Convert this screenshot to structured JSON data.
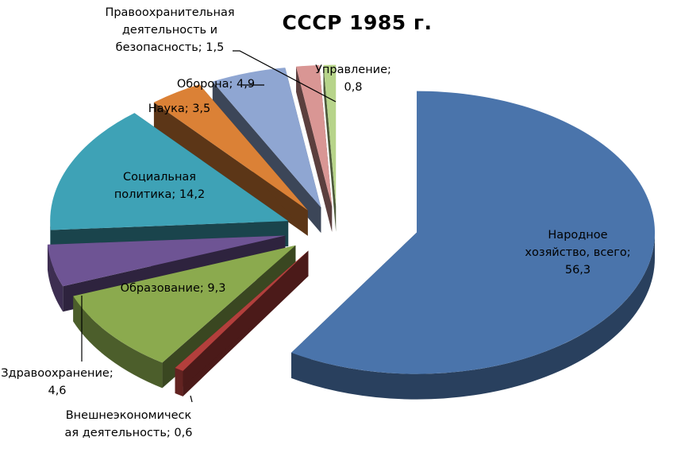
{
  "chart_data": {
    "type": "pie",
    "title": "СССР 1985 г.",
    "exploded": true,
    "three_d": true,
    "slices": [
      {
        "label": "Народное хозяйство, всего",
        "value": 56.3,
        "label_lines": [
          "Народное",
          "хозяйство, всего;",
          "56,3"
        ],
        "color": "#4a74ab"
      },
      {
        "label": "Внешнеэкономическая деятельность",
        "value": 0.6,
        "label_lines": [
          "Внешнеэкономическ",
          "ая деятельность; 0,6"
        ],
        "color": "#b33f3c"
      },
      {
        "label": "Образование",
        "value": 9.3,
        "label_lines": [
          "Образование; 9,3"
        ],
        "color": "#8baa4e"
      },
      {
        "label": "Здравоохранение",
        "value": 4.6,
        "label_lines": [
          "Здравоохранение;",
          "4,6"
        ],
        "color": "#6e5494"
      },
      {
        "label": "Социальная политика",
        "value": 14.2,
        "label_lines": [
          "Социальная",
          "политика; 14,2"
        ],
        "color": "#3ea2b6"
      },
      {
        "label": "Наука",
        "value": 3.5,
        "label_lines": [
          "Наука; 3,5"
        ],
        "color": "#db8136"
      },
      {
        "label": "Оборона",
        "value": 4.9,
        "label_lines": [
          "Оборона; 4,9"
        ],
        "color": "#8fa6d2"
      },
      {
        "label": "Правоохранительная деятельность и безопасность",
        "value": 1.5,
        "label_lines": [
          "Правоохранительная",
          "деятельность и",
          "безопасность; 1,5"
        ],
        "color": "#d99694"
      },
      {
        "label": "Управление",
        "value": 0.8,
        "label_lines": [
          "Управление;",
          "0,8"
        ],
        "color": "#b7d48a"
      }
    ]
  }
}
